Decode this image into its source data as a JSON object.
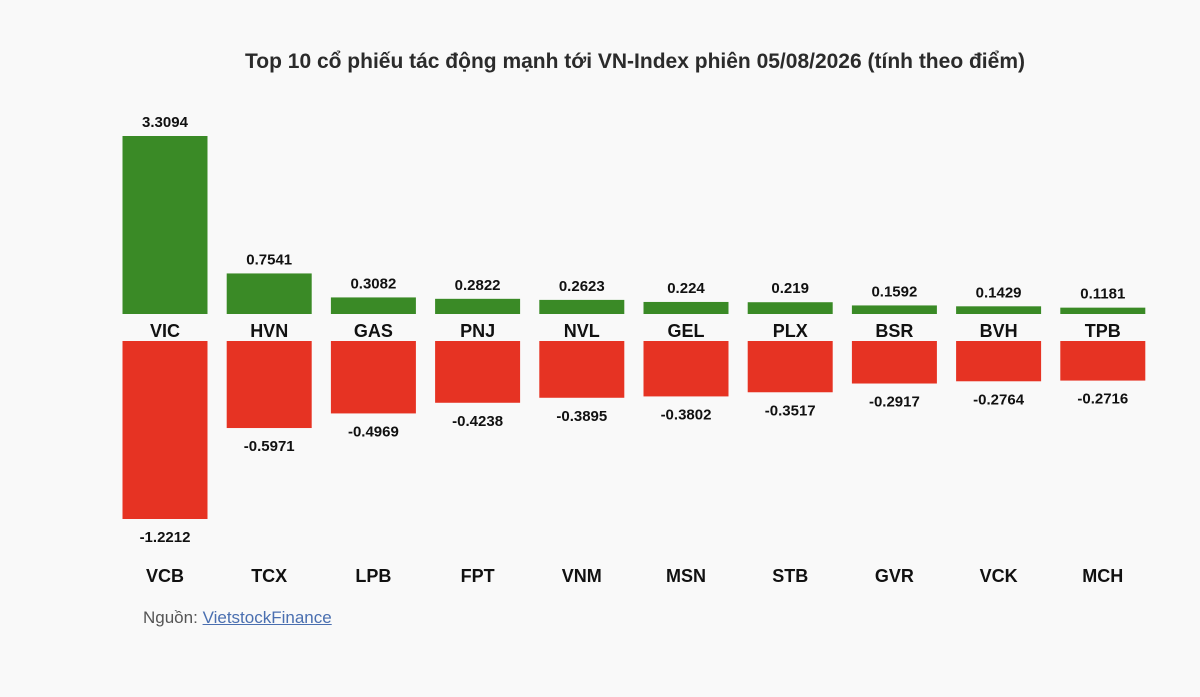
{
  "chart_data": {
    "type": "bar",
    "title": "Top 10 cổ phiếu tác động mạnh tới VN-Index phiên 05/08/2026 (tính theo điểm)",
    "series": [
      {
        "categories": [
          "VIC",
          "HVN",
          "GAS",
          "PNJ",
          "NVL",
          "GEL",
          "PLX",
          "BSR",
          "BVH",
          "TPB"
        ],
        "values": [
          3.3094,
          0.7541,
          0.3082,
          0.2822,
          0.2623,
          0.224,
          0.219,
          0.1592,
          0.1429,
          0.1181
        ],
        "labels": [
          "3.3094",
          "0.7541",
          "0.3082",
          "0.2822",
          "0.2623",
          "0.224",
          "0.219",
          "0.1592",
          "0.1429",
          "0.1181"
        ],
        "color": "#3a8a26"
      },
      {
        "categories": [
          "VCB",
          "TCX",
          "LPB",
          "FPT",
          "VNM",
          "MSN",
          "STB",
          "GVR",
          "VCK",
          "MCH"
        ],
        "values": [
          -1.2212,
          -0.5971,
          -0.4969,
          -0.4238,
          -0.3895,
          -0.3802,
          -0.3517,
          -0.2917,
          -0.2764,
          -0.2716
        ],
        "labels": [
          "-1.2212",
          "-0.5971",
          "-0.4969",
          "-0.4238",
          "-0.3895",
          "-0.3802",
          "-0.3517",
          "-0.2917",
          "-0.2764",
          "-0.2716"
        ],
        "color": "#e63323"
      }
    ]
  },
  "source": {
    "prefix": "Nguồn:",
    "link_text": "VietstockFinance"
  }
}
